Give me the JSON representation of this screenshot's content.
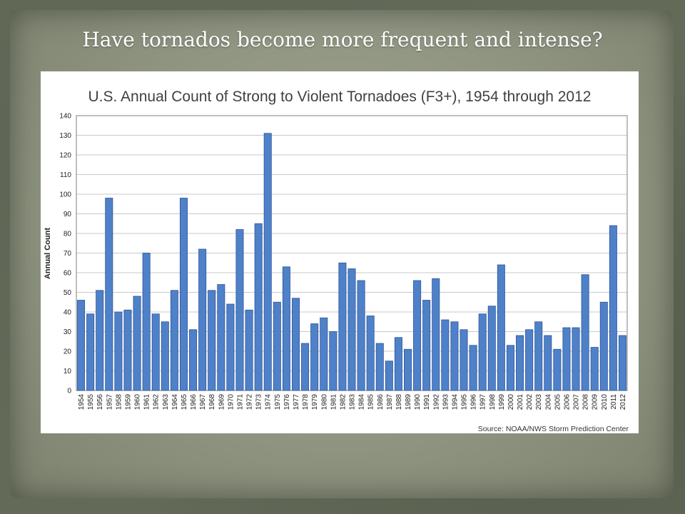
{
  "slide": {
    "title": "Have tornados become more frequent and intense?"
  },
  "colors": {
    "bar_fill": "#4f81c9",
    "bar_stroke": "#2f5597",
    "grid": "#c9c9c9",
    "axis_frame": "#7f7f7f",
    "title_text": "#404040"
  },
  "chart_data": {
    "type": "bar",
    "title": "U.S. Annual Count of Strong to Violent Tornadoes (F3+), 1954 through 2012",
    "xlabel": "",
    "ylabel": "Annual Count",
    "ylim": [
      0,
      140
    ],
    "yticks": [
      0,
      10,
      20,
      30,
      40,
      50,
      60,
      70,
      80,
      90,
      100,
      110,
      120,
      130,
      140
    ],
    "grid": true,
    "source": "Source: NOAA/NWS Storm Prediction Center",
    "categories": [
      "1954",
      "1955",
      "1956",
      "1957",
      "1958",
      "1959",
      "1960",
      "1961",
      "1962",
      "1963",
      "1964",
      "1965",
      "1966",
      "1967",
      "1968",
      "1969",
      "1970",
      "1971",
      "1972",
      "1973",
      "1974",
      "1975",
      "1976",
      "1977",
      "1978",
      "1979",
      "1980",
      "1981",
      "1982",
      "1983",
      "1984",
      "1985",
      "1986",
      "1987",
      "1988",
      "1989",
      "1990",
      "1991",
      "1992",
      "1993",
      "1994",
      "1995",
      "1996",
      "1997",
      "1998",
      "1999",
      "2000",
      "2001",
      "2002",
      "2003",
      "2004",
      "2005",
      "2006",
      "2007",
      "2008",
      "2009",
      "2010",
      "2011",
      "2012"
    ],
    "values": [
      46,
      39,
      51,
      98,
      40,
      41,
      48,
      70,
      39,
      35,
      51,
      98,
      31,
      72,
      51,
      54,
      44,
      82,
      41,
      85,
      131,
      45,
      63,
      47,
      24,
      34,
      37,
      30,
      65,
      62,
      56,
      38,
      24,
      15,
      27,
      21,
      56,
      46,
      57,
      36,
      35,
      31,
      23,
      39,
      43,
      64,
      23,
      28,
      31,
      35,
      28,
      21,
      32,
      32,
      59,
      22,
      45,
      84,
      28
    ]
  }
}
